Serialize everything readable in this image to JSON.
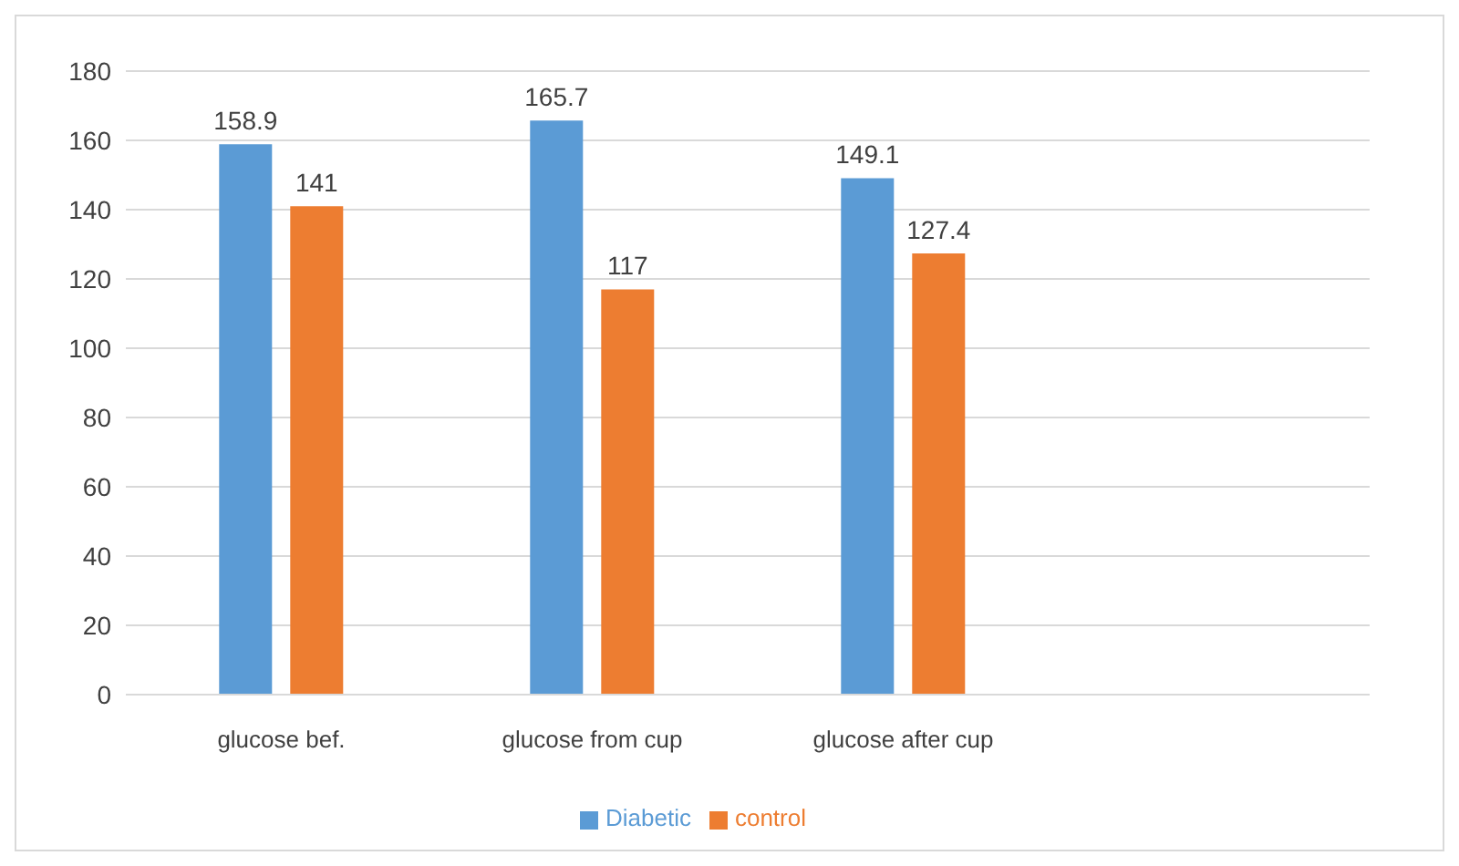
{
  "chart_data": {
    "type": "bar",
    "categories": [
      "glucose bef.",
      "glucose from cup",
      "glucose after cup",
      null
    ],
    "series": [
      {
        "name": "Diabetic",
        "color": "#5b9bd5",
        "values": [
          158.9,
          165.7,
          149.1,
          null
        ]
      },
      {
        "name": "control",
        "color": "#ed7d31",
        "values": [
          141,
          117,
          127.4,
          null
        ]
      }
    ],
    "ylim": [
      0,
      180
    ],
    "yticks": [
      0,
      20,
      40,
      60,
      80,
      100,
      120,
      140,
      160,
      180
    ],
    "grid": "y",
    "legend": "bottom",
    "data_labels": true
  }
}
